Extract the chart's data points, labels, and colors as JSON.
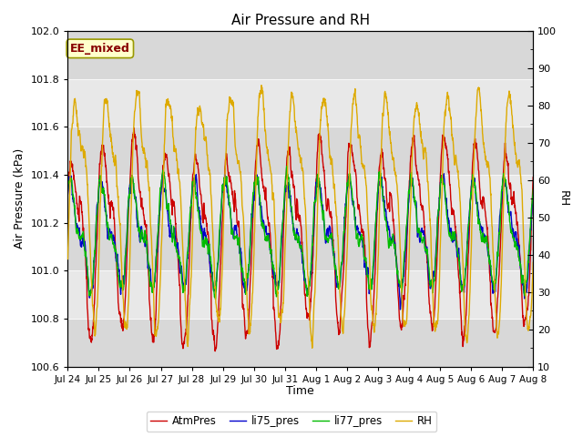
{
  "title": "Air Pressure and RH",
  "xlabel": "Time",
  "ylabel_left": "Air Pressure (kPa)",
  "ylabel_right": "RH",
  "annotation": "EE_mixed",
  "ylim_left": [
    100.6,
    102.0
  ],
  "ylim_right": [
    10,
    100
  ],
  "yticks_left": [
    100.6,
    100.8,
    101.0,
    101.2,
    101.4,
    101.6,
    101.8,
    102.0
  ],
  "yticks_right": [
    10,
    20,
    30,
    40,
    50,
    60,
    70,
    80,
    90,
    100
  ],
  "xtick_labels": [
    "Jul 24",
    "Jul 25",
    "Jul 26",
    "Jul 27",
    "Jul 28",
    "Jul 29",
    "Jul 30",
    "Jul 31",
    "Aug 1",
    "Aug 2",
    "Aug 3",
    "Aug 4",
    "Aug 5",
    "Aug 6",
    "Aug 7",
    "Aug 8"
  ],
  "colors": {
    "AtmPres": "#cc0000",
    "li75_pres": "#0000cc",
    "li77_pres": "#00bb00",
    "RH": "#ddaa00"
  },
  "legend_labels": [
    "AtmPres",
    "li75_pres",
    "li77_pres",
    "RH"
  ],
  "fig_bg": "#ffffff",
  "plot_bg": "#e0e0e0",
  "grid_color": "#f8f8f8",
  "line_width": 1.0,
  "n_days": 15,
  "seed": 42
}
